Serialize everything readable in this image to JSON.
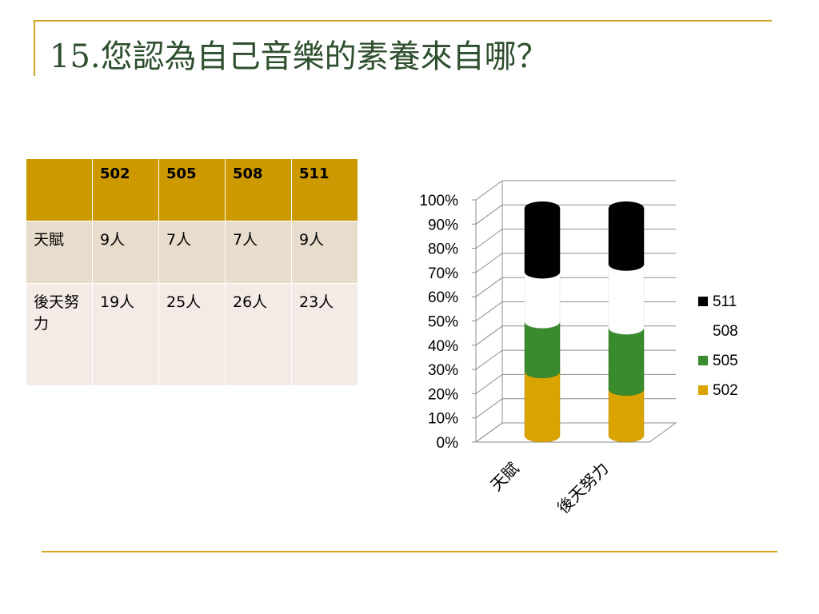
{
  "slide": {
    "title": "15.您認為自己音樂的素養來自哪？"
  },
  "table": {
    "headers": [
      "",
      "502",
      "505",
      "508",
      "511"
    ],
    "rows": [
      {
        "label": "天賦",
        "cells": [
          "9人",
          "7人",
          "7人",
          "9人"
        ]
      },
      {
        "label": "後天努力",
        "cells": [
          "19人",
          "25人",
          "26人",
          "23人"
        ]
      }
    ]
  },
  "chart_data": {
    "type": "bar",
    "stacked": "percent",
    "categories": [
      "天賦",
      "後天努力"
    ],
    "series": [
      {
        "name": "502",
        "values": [
          9,
          19
        ],
        "color": "#d9a300"
      },
      {
        "name": "505",
        "values": [
          7,
          25
        ],
        "color": "#3a8a2e"
      },
      {
        "name": "508",
        "values": [
          7,
          26
        ],
        "color": "#ffffff"
      },
      {
        "name": "511",
        "values": [
          9,
          23
        ],
        "color": "#000000"
      }
    ],
    "yticks": [
      "0%",
      "10%",
      "20%",
      "30%",
      "40%",
      "50%",
      "60%",
      "70%",
      "80%",
      "90%",
      "100%"
    ],
    "ylim": [
      0,
      100
    ],
    "grid": true,
    "legend": "right",
    "legend_order": [
      "511",
      "508",
      "505",
      "502"
    ]
  }
}
